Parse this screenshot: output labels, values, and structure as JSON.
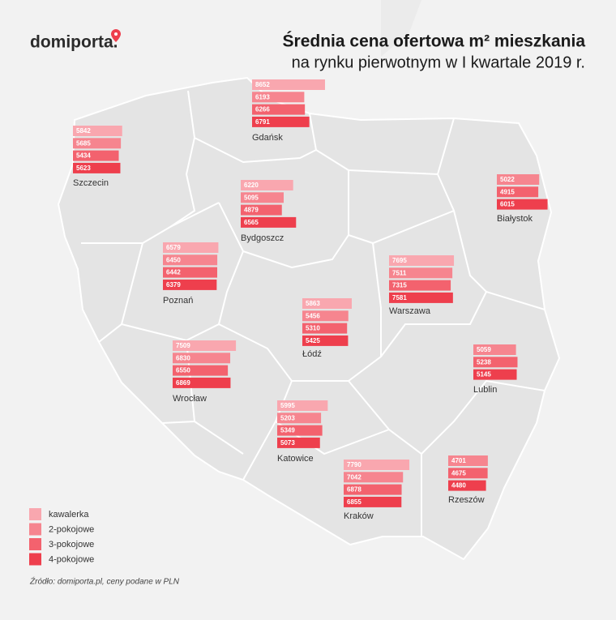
{
  "logo": "domiporta.",
  "title": "Średnia cena ofertowa m² mieszkania",
  "subtitle": "na rynku pierwotnym w I kwartale 2019 r.",
  "source": "Źródło: domiporta.pl, ceny podane w PLN",
  "series": [
    {
      "name": "kawalerka",
      "color": "#f9a7af"
    },
    {
      "name": "2-pokojowe",
      "color": "#f6858f"
    },
    {
      "name": "3-pokojowe",
      "color": "#f3626e"
    },
    {
      "name": "4-pokojowe",
      "color": "#ee3f4d"
    }
  ],
  "cities": [
    {
      "name": "Gdańsk",
      "values": [
        8652,
        6193,
        6266,
        6791
      ]
    },
    {
      "name": "Szczecin",
      "values": [
        5842,
        5685,
        5434,
        5623
      ]
    },
    {
      "name": "Białystok",
      "values": [
        null,
        5022,
        4915,
        6015
      ]
    },
    {
      "name": "Bydgoszcz",
      "values": [
        6220,
        5095,
        4879,
        6565
      ]
    },
    {
      "name": "Poznań",
      "values": [
        6579,
        6450,
        6442,
        6379
      ]
    },
    {
      "name": "Warszawa",
      "values": [
        7695,
        7511,
        7315,
        7581
      ]
    },
    {
      "name": "Łódź",
      "values": [
        5863,
        5456,
        5310,
        5425
      ]
    },
    {
      "name": "Lublin",
      "values": [
        null,
        5059,
        5238,
        5145
      ]
    },
    {
      "name": "Wrocław",
      "values": [
        7509,
        6830,
        6550,
        6869
      ]
    },
    {
      "name": "Katowice",
      "values": [
        5995,
        5203,
        5349,
        5073
      ]
    },
    {
      "name": "Rzeszów",
      "values": [
        null,
        4701,
        4675,
        4480
      ]
    },
    {
      "name": "Kraków",
      "values": [
        7790,
        7042,
        6878,
        6855
      ]
    }
  ]
}
